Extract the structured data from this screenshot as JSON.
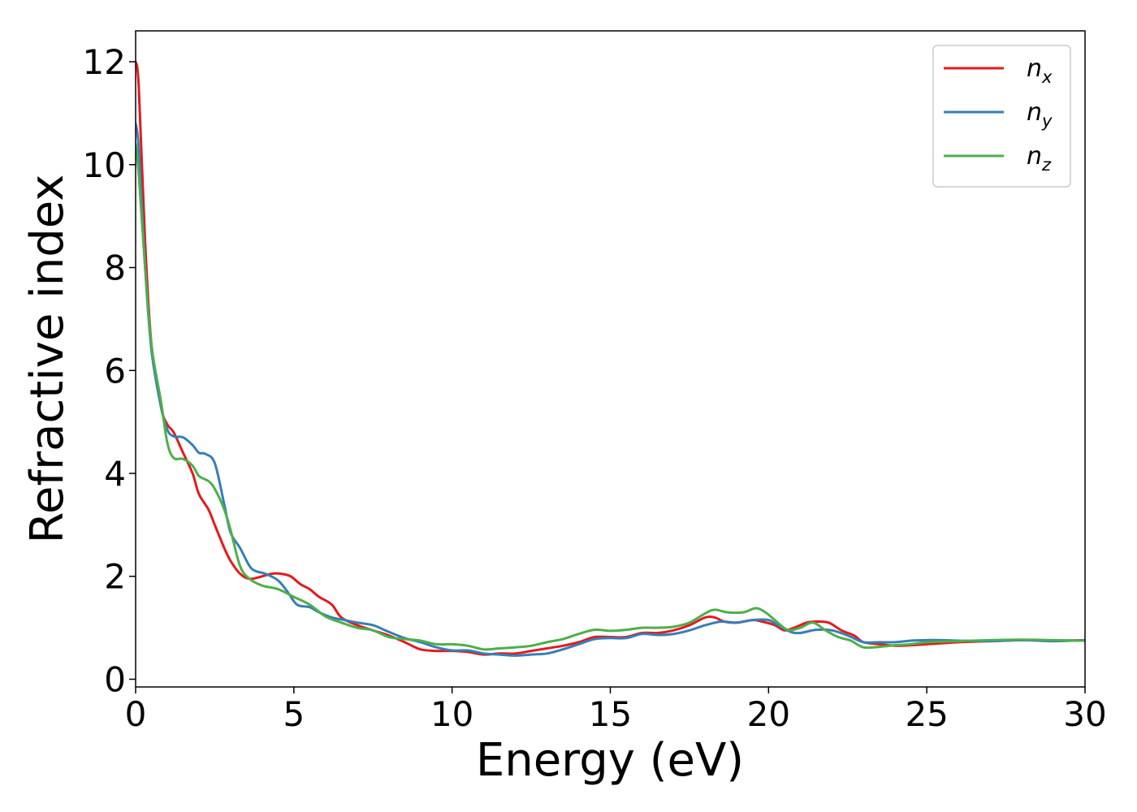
{
  "chart_data": {
    "type": "line",
    "title": "",
    "xlabel": "Energy (eV)",
    "ylabel": "Refractive index",
    "xlim": [
      0,
      30
    ],
    "ylim": [
      -0.15,
      12.6
    ],
    "x_ticks": [
      0,
      5,
      10,
      15,
      20,
      25,
      30
    ],
    "y_ticks": [
      0,
      2,
      4,
      6,
      8,
      10,
      12
    ],
    "grid": false,
    "legend_position": "top-right",
    "series": [
      {
        "name": "n",
        "subscript": "x",
        "color": "#e41a1c",
        "x": [
          0,
          0.1,
          0.3,
          0.5,
          0.8,
          1.0,
          1.2,
          1.5,
          1.8,
          2.0,
          2.3,
          2.5,
          2.8,
          3.0,
          3.3,
          3.6,
          4.0,
          4.3,
          4.6,
          4.9,
          5.2,
          5.5,
          5.8,
          6.2,
          6.5,
          7.0,
          7.5,
          8.0,
          8.5,
          9.0,
          9.5,
          10.0,
          10.5,
          11.0,
          11.5,
          12.0,
          12.5,
          13.0,
          13.5,
          14.0,
          14.5,
          15.0,
          15.5,
          16.0,
          16.5,
          17.0,
          17.5,
          18.0,
          18.3,
          18.6,
          19.0,
          19.5,
          19.8,
          20.2,
          20.5,
          20.8,
          21.2,
          21.5,
          21.9,
          22.3,
          22.7,
          23.0,
          23.5,
          24.0,
          24.5,
          25.0,
          25.5,
          26.0,
          27.0,
          28.0,
          29.0,
          30.0
        ],
        "y": [
          12.0,
          11.5,
          8.5,
          6.5,
          5.3,
          4.95,
          4.8,
          4.4,
          4.0,
          3.6,
          3.3,
          3.0,
          2.55,
          2.3,
          2.05,
          1.95,
          2.0,
          2.05,
          2.05,
          2.0,
          1.85,
          1.75,
          1.6,
          1.45,
          1.2,
          1.05,
          0.95,
          0.85,
          0.72,
          0.58,
          0.55,
          0.55,
          0.53,
          0.48,
          0.5,
          0.5,
          0.55,
          0.6,
          0.65,
          0.72,
          0.82,
          0.82,
          0.82,
          0.9,
          0.9,
          0.95,
          1.05,
          1.2,
          1.2,
          1.12,
          1.1,
          1.15,
          1.12,
          1.05,
          0.95,
          1.0,
          1.1,
          1.12,
          1.1,
          0.95,
          0.85,
          0.72,
          0.68,
          0.65,
          0.66,
          0.68,
          0.7,
          0.72,
          0.74,
          0.76,
          0.75,
          0.76
        ]
      },
      {
        "name": "n",
        "subscript": "y",
        "color": "#377eb8",
        "x": [
          0,
          0.1,
          0.3,
          0.5,
          0.8,
          1.0,
          1.2,
          1.5,
          1.8,
          2.0,
          2.2,
          2.5,
          2.8,
          3.0,
          3.3,
          3.6,
          3.8,
          4.1,
          4.5,
          4.8,
          5.1,
          5.5,
          5.8,
          6.2,
          6.6,
          7.0,
          7.5,
          8.0,
          8.5,
          9.0,
          9.5,
          10.0,
          10.5,
          11.0,
          11.5,
          12.0,
          12.5,
          13.0,
          13.5,
          14.0,
          14.5,
          15.0,
          15.5,
          16.0,
          16.5,
          17.0,
          17.5,
          18.0,
          18.5,
          19.0,
          19.5,
          20.0,
          20.3,
          20.7,
          21.0,
          21.5,
          22.0,
          22.5,
          23.0,
          23.5,
          24.0,
          24.5,
          25.0,
          25.5,
          26.0,
          27.0,
          28.0,
          29.0,
          30.0
        ],
        "y": [
          10.8,
          10.3,
          8.0,
          6.4,
          5.3,
          4.85,
          4.72,
          4.7,
          4.55,
          4.4,
          4.38,
          4.2,
          3.4,
          2.85,
          2.55,
          2.2,
          2.1,
          2.05,
          1.92,
          1.7,
          1.45,
          1.4,
          1.3,
          1.2,
          1.15,
          1.1,
          1.05,
          0.92,
          0.8,
          0.72,
          0.62,
          0.56,
          0.56,
          0.5,
          0.48,
          0.46,
          0.48,
          0.5,
          0.58,
          0.68,
          0.78,
          0.8,
          0.8,
          0.88,
          0.86,
          0.88,
          0.95,
          1.05,
          1.12,
          1.1,
          1.15,
          1.15,
          1.05,
          0.92,
          0.9,
          0.96,
          0.95,
          0.85,
          0.72,
          0.72,
          0.72,
          0.75,
          0.76,
          0.76,
          0.75,
          0.74,
          0.76,
          0.74,
          0.76
        ]
      },
      {
        "name": "n",
        "subscript": "z",
        "color": "#4daf4a",
        "x": [
          0,
          0.1,
          0.3,
          0.5,
          0.8,
          1.0,
          1.2,
          1.5,
          1.8,
          2.0,
          2.3,
          2.5,
          2.8,
          3.0,
          3.3,
          3.6,
          4.0,
          4.5,
          5.0,
          5.5,
          6.0,
          6.5,
          7.0,
          7.5,
          8.0,
          8.5,
          9.0,
          9.5,
          10.0,
          10.5,
          11.0,
          11.5,
          12.0,
          12.5,
          13.0,
          13.5,
          14.0,
          14.5,
          15.0,
          15.5,
          16.0,
          16.5,
          17.0,
          17.5,
          18.0,
          18.3,
          18.7,
          19.2,
          19.6,
          19.9,
          20.2,
          20.6,
          21.0,
          21.4,
          21.8,
          22.2,
          22.6,
          23.0,
          23.5,
          24.0,
          24.5,
          25.0,
          26.0,
          27.0,
          28.0,
          29.0,
          30.0
        ],
        "y": [
          10.4,
          9.8,
          8.0,
          6.5,
          5.4,
          4.6,
          4.3,
          4.28,
          4.15,
          3.95,
          3.85,
          3.7,
          3.3,
          2.9,
          2.2,
          1.95,
          1.82,
          1.75,
          1.6,
          1.45,
          1.22,
          1.1,
          1.0,
          0.95,
          0.82,
          0.78,
          0.75,
          0.68,
          0.68,
          0.65,
          0.58,
          0.6,
          0.62,
          0.65,
          0.72,
          0.78,
          0.88,
          0.96,
          0.94,
          0.96,
          1.0,
          1.0,
          1.02,
          1.1,
          1.28,
          1.35,
          1.3,
          1.3,
          1.38,
          1.3,
          1.15,
          0.96,
          1.0,
          1.1,
          0.95,
          0.82,
          0.75,
          0.62,
          0.63,
          0.66,
          0.68,
          0.72,
          0.74,
          0.76,
          0.77,
          0.76,
          0.75
        ]
      }
    ]
  }
}
